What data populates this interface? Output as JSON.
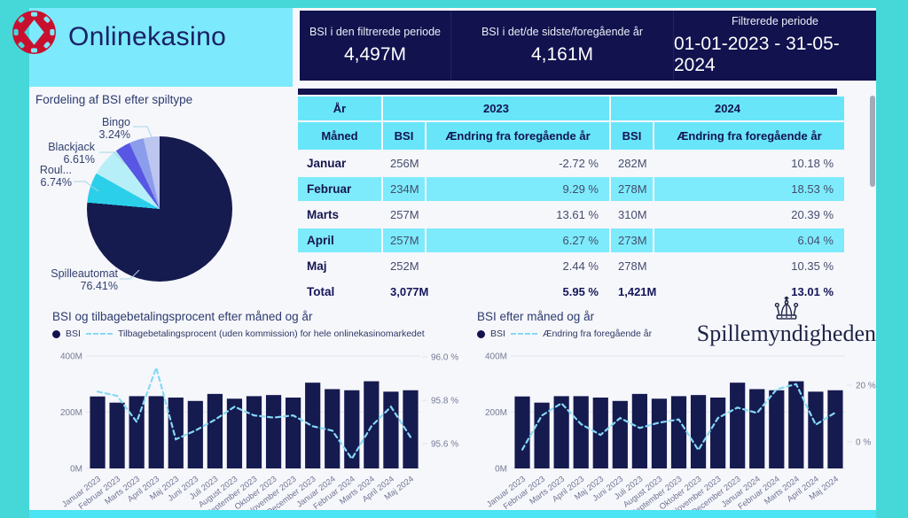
{
  "app": {
    "title": "Onlinekasino"
  },
  "header": {
    "kpis": [
      {
        "label": "BSI i den filtrerede periode",
        "value": "4,497M"
      },
      {
        "label": "BSI i det/de sidste/foregående år",
        "value": "4,161M"
      },
      {
        "label": "Filtrerede periode",
        "value": "01-01-2023 - 31-05-2024"
      }
    ]
  },
  "agency": {
    "name": "Spillemyndigheden"
  },
  "table": {
    "year_header": {
      "col0": "År",
      "y2023": "2023",
      "y2024": "2024"
    },
    "columns": [
      "Måned",
      "BSI",
      "Ændring fra foregående år",
      "BSI",
      "Ændring fra foregående år"
    ],
    "rows": [
      {
        "month": "Januar",
        "bsi_2023": "256M",
        "chg_2023": "-2.72 %",
        "bsi_2024": "282M",
        "chg_2024": "10.18 %",
        "shaded": false,
        "total": false
      },
      {
        "month": "Februar",
        "bsi_2023": "234M",
        "chg_2023": "9.29 %",
        "bsi_2024": "278M",
        "chg_2024": "18.53 %",
        "shaded": true,
        "total": false
      },
      {
        "month": "Marts",
        "bsi_2023": "257M",
        "chg_2023": "13.61 %",
        "bsi_2024": "310M",
        "chg_2024": "20.39 %",
        "shaded": false,
        "total": false
      },
      {
        "month": "April",
        "bsi_2023": "257M",
        "chg_2023": "6.27 %",
        "bsi_2024": "273M",
        "chg_2024": "6.04 %",
        "shaded": true,
        "total": false
      },
      {
        "month": "Maj",
        "bsi_2023": "252M",
        "chg_2023": "2.44 %",
        "bsi_2024": "278M",
        "chg_2024": "10.35 %",
        "shaded": false,
        "total": false
      },
      {
        "month": "Total",
        "bsi_2023": "3,077M",
        "chg_2023": "5.95 %",
        "bsi_2024": "1,421M",
        "chg_2024": "13.01 %",
        "shaded": false,
        "total": true
      }
    ]
  },
  "chart_data": [
    {
      "type": "pie",
      "title": "Fordeling af BSI efter spiltype",
      "slices": [
        {
          "label": "Spilleautomat",
          "pct": 76.41,
          "pct_label": "76.41%",
          "color": "#151a4f"
        },
        {
          "label": "Roul...",
          "pct": 6.74,
          "pct_label": "6.74%",
          "color": "#2bcfe9"
        },
        {
          "label": "Blackjack",
          "pct": 6.61,
          "pct_label": "6.61%",
          "color": "#b7eff8"
        },
        {
          "label": "",
          "pct": 3.41,
          "pct_label": "",
          "color": "#5757e3"
        },
        {
          "label": "Bingo",
          "pct": 3.24,
          "pct_label": "3.24%",
          "color": "#8c9cec"
        },
        {
          "label": "",
          "pct": 3.59,
          "pct_label": "",
          "color": "#bcc6ee"
        }
      ]
    },
    {
      "type": "bar+line",
      "title": "BSI  og tilbagebetalingsprocent efter måned og år",
      "categories": [
        "Januar 2023",
        "Februar 2023",
        "Marts 2023",
        "April 2023",
        "Maj 2023",
        "Juni 2023",
        "Juli 2023",
        "August 2023",
        "September 2023",
        "Oktober 2023",
        "November 2023",
        "December 2023",
        "Januar 2024",
        "Februar 2024",
        "Marts 2024",
        "April 2024",
        "Maj 2024"
      ],
      "series": [
        {
          "name": "BSI",
          "type": "bar",
          "unit": "M",
          "values": [
            256,
            234,
            257,
            257,
            252,
            240,
            265,
            248,
            257,
            261,
            252,
            305,
            282,
            278,
            310,
            273,
            278
          ]
        },
        {
          "name": "Tilbagebetalingsprocent (uden kommission) for hele onlinekasinomarkedet",
          "type": "line",
          "unit": "%",
          "values": [
            95.84,
            95.82,
            95.7,
            95.95,
            95.62,
            95.66,
            95.71,
            95.77,
            95.73,
            95.72,
            95.73,
            95.68,
            95.66,
            95.53,
            95.68,
            95.77,
            95.63
          ]
        }
      ],
      "y_left": {
        "max": 400,
        "ticks": [
          {
            "v": 0,
            "label": "0M"
          },
          {
            "v": 200,
            "label": "200M"
          },
          {
            "v": 400,
            "label": "400M"
          }
        ]
      },
      "y_right": {
        "ticks": [
          {
            "v": 96.0,
            "label": "96.0 %"
          },
          {
            "v": 95.8,
            "label": "95.8 %"
          },
          {
            "v": 95.6,
            "label": "95.6 %"
          }
        ]
      },
      "bar_color": "#151a4f",
      "line_color": "#85d9f5"
    },
    {
      "type": "bar+line",
      "title": "BSI efter måned og år",
      "categories": [
        "Januar 2023",
        "Februar 2023",
        "Marts 2023",
        "April 2023",
        "Maj 2023",
        "Juni 2023",
        "Juli 2023",
        "August 2023",
        "September 2023",
        "Oktober 2023",
        "November 2023",
        "December 2023",
        "Januar 2024",
        "Februar 2024",
        "Marts 2024",
        "April 2024",
        "Maj 2024"
      ],
      "series": [
        {
          "name": "BSI",
          "type": "bar",
          "unit": "M",
          "values": [
            256,
            234,
            257,
            257,
            252,
            240,
            265,
            248,
            257,
            261,
            252,
            305,
            282,
            278,
            310,
            273,
            278
          ]
        },
        {
          "name": "Ændring fra foregående år",
          "type": "line",
          "unit": "%",
          "values": [
            -2.72,
            9.29,
            13.61,
            6.27,
            2.44,
            8.4,
            4.9,
            6.8,
            7.9,
            -2.9,
            8.4,
            12.1,
            10.18,
            18.53,
            20.39,
            6.04,
            10.35
          ]
        }
      ],
      "y_left": {
        "max": 400,
        "ticks": [
          {
            "v": 0,
            "label": "0M"
          },
          {
            "v": 200,
            "label": "200M"
          },
          {
            "v": 400,
            "label": "400M"
          }
        ]
      },
      "y_right": {
        "ticks": [
          {
            "v": 20,
            "label": "20 %"
          },
          {
            "v": 0,
            "label": "0 %"
          }
        ]
      },
      "bar_color": "#151a4f",
      "line_color": "#85d9f5"
    }
  ],
  "colors": {
    "frame_teal": "#46d7d9",
    "bottom_cyan": "#4ae4f4",
    "panel_cyan": "#7ce9fc",
    "navy": "#11124e",
    "table_header_cyan": "#68e5f9",
    "table_row_cyan": "#7debfb",
    "chip_red": "#c8102e",
    "dashed_line_blue": "#85d9f5"
  }
}
